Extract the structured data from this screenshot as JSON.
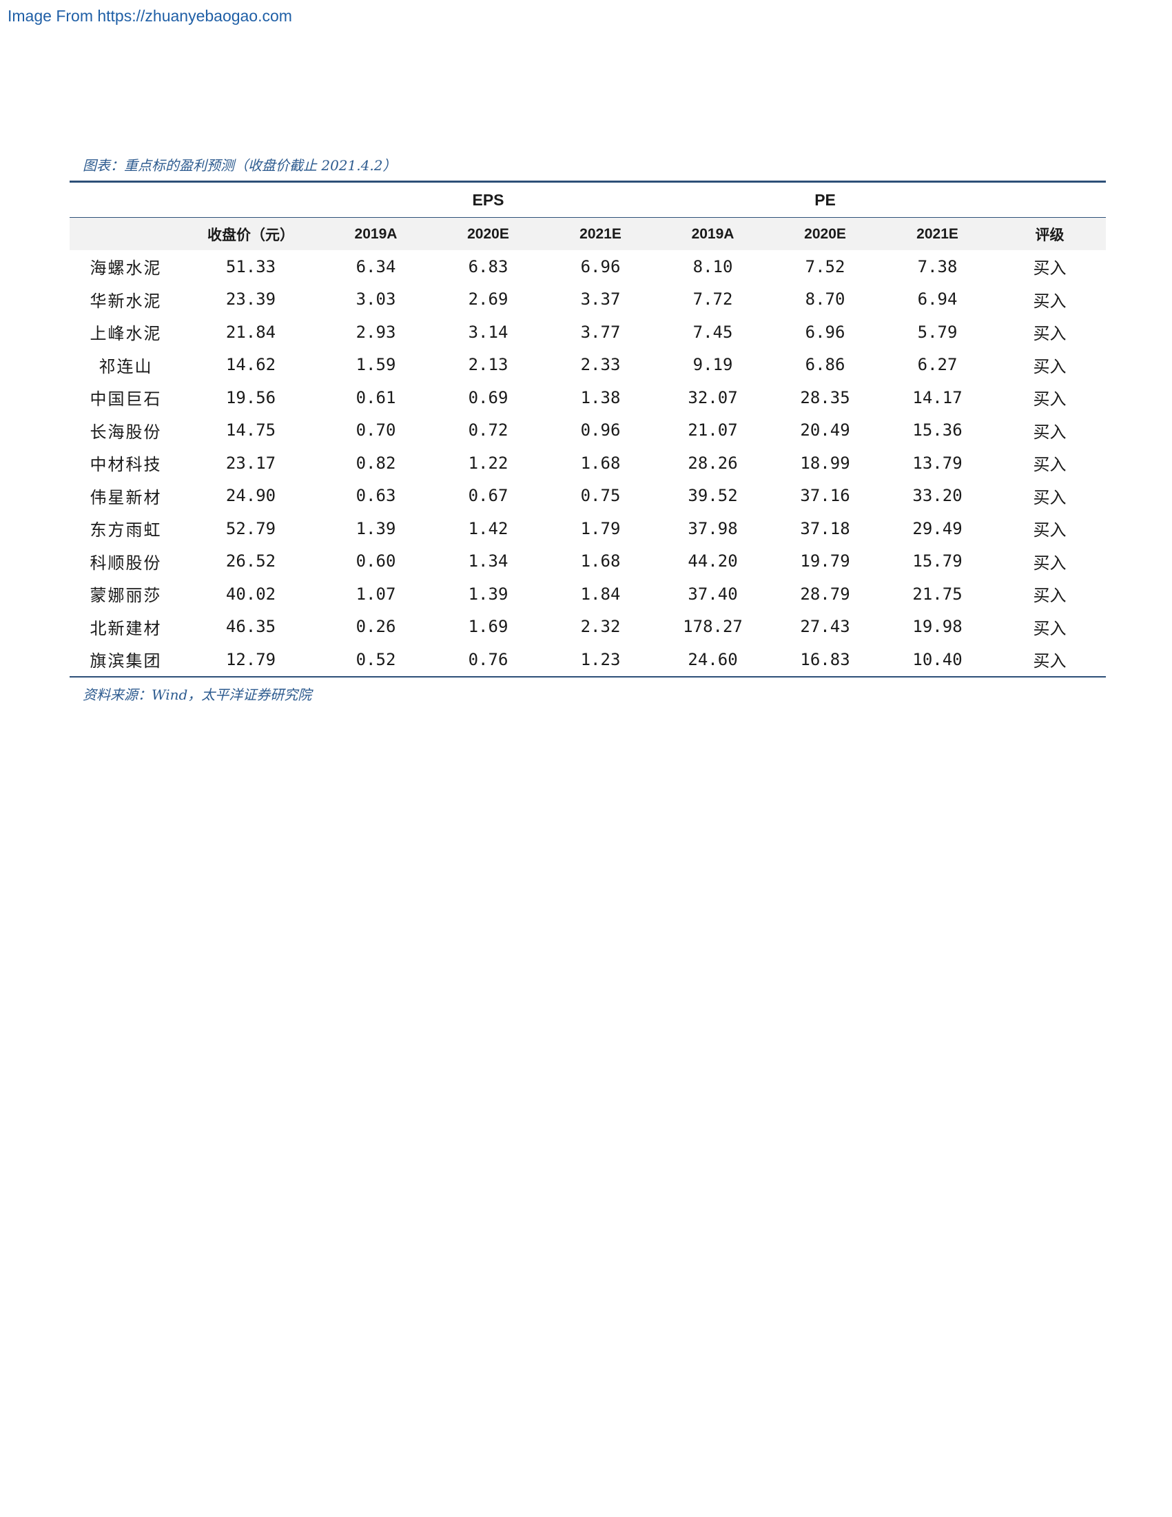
{
  "watermark": "Image From https://zhuanyebaogao.com",
  "caption": "图表：重点标的盈利预测（收盘价截止 2021.4.2）",
  "table": {
    "groups": {
      "eps": "EPS",
      "pe": "PE"
    },
    "headers": [
      "",
      "收盘价（元）",
      "2019A",
      "2020E",
      "2021E",
      "2019A",
      "2020E",
      "2021E",
      "评级"
    ],
    "rows": [
      [
        "海螺水泥",
        "51.33",
        "6.34",
        "6.83",
        "6.96",
        "8.10",
        "7.52",
        "7.38",
        "买入"
      ],
      [
        "华新水泥",
        "23.39",
        "3.03",
        "2.69",
        "3.37",
        "7.72",
        "8.70",
        "6.94",
        "买入"
      ],
      [
        "上峰水泥",
        "21.84",
        "2.93",
        "3.14",
        "3.77",
        "7.45",
        "6.96",
        "5.79",
        "买入"
      ],
      [
        "祁连山",
        "14.62",
        "1.59",
        "2.13",
        "2.33",
        "9.19",
        "6.86",
        "6.27",
        "买入"
      ],
      [
        "中国巨石",
        "19.56",
        "0.61",
        "0.69",
        "1.38",
        "32.07",
        "28.35",
        "14.17",
        "买入"
      ],
      [
        "长海股份",
        "14.75",
        "0.70",
        "0.72",
        "0.96",
        "21.07",
        "20.49",
        "15.36",
        "买入"
      ],
      [
        "中材科技",
        "23.17",
        "0.82",
        "1.22",
        "1.68",
        "28.26",
        "18.99",
        "13.79",
        "买入"
      ],
      [
        "伟星新材",
        "24.90",
        "0.63",
        "0.67",
        "0.75",
        "39.52",
        "37.16",
        "33.20",
        "买入"
      ],
      [
        "东方雨虹",
        "52.79",
        "1.39",
        "1.42",
        "1.79",
        "37.98",
        "37.18",
        "29.49",
        "买入"
      ],
      [
        "科顺股份",
        "26.52",
        "0.60",
        "1.34",
        "1.68",
        "44.20",
        "19.79",
        "15.79",
        "买入"
      ],
      [
        "蒙娜丽莎",
        "40.02",
        "1.07",
        "1.39",
        "1.84",
        "37.40",
        "28.79",
        "21.75",
        "买入"
      ],
      [
        "北新建材",
        "46.35",
        "0.26",
        "1.69",
        "2.32",
        "178.27",
        "27.43",
        "19.98",
        "买入"
      ],
      [
        "旗滨集团",
        "12.79",
        "0.52",
        "0.76",
        "1.23",
        "24.60",
        "16.83",
        "10.40",
        "买入"
      ]
    ]
  },
  "source": "资料来源：Wind，太平洋证券研究院"
}
